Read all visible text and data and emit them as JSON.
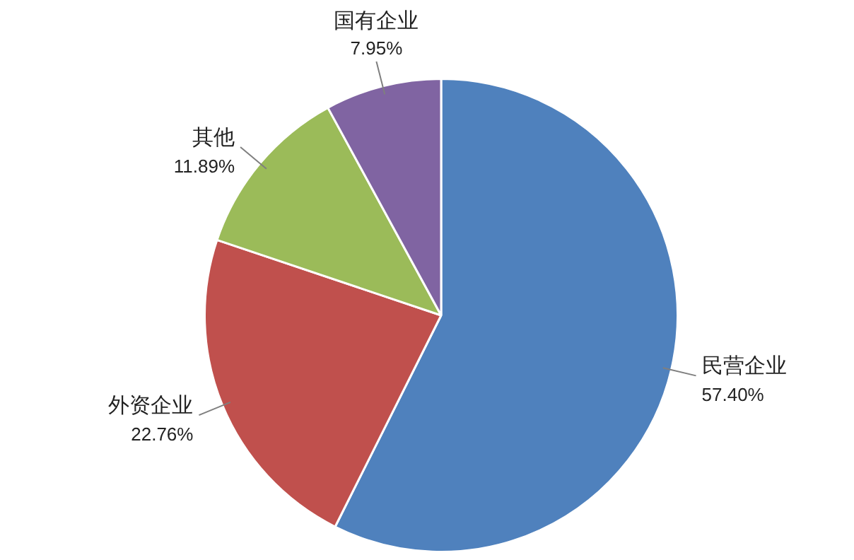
{
  "chart_data": {
    "type": "pie",
    "categories": [
      "民营企业",
      "外资企业",
      "其他",
      "国有企业"
    ],
    "values": [
      57.4,
      22.76,
      11.89,
      7.95
    ],
    "value_labels": [
      "57.40%",
      "22.76%",
      "11.89%",
      "7.95%"
    ],
    "colors": [
      "#4f81bd",
      "#c0504d",
      "#9bbb59",
      "#8064a2"
    ],
    "legend": false
  }
}
